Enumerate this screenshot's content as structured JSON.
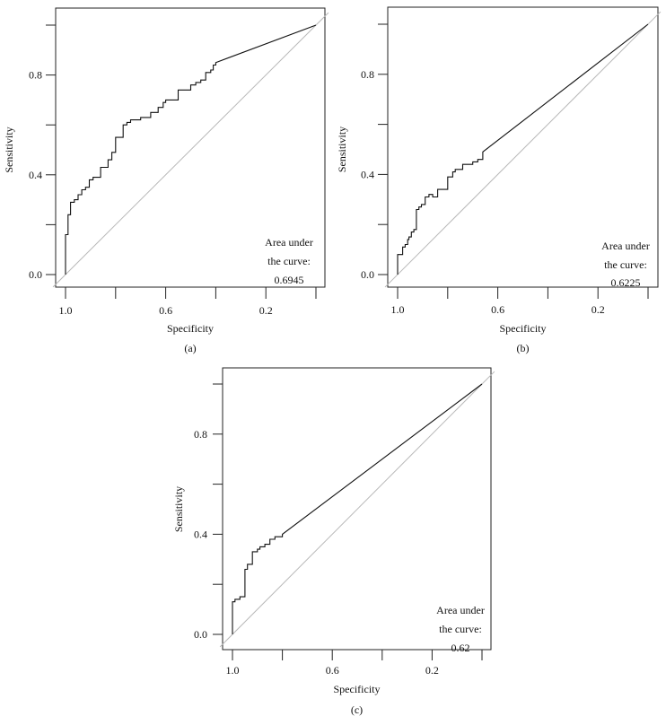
{
  "chart_data": [
    {
      "panel_label": "(a)",
      "type": "line",
      "xlabel": "Specificity",
      "ylabel": "Sensitivity",
      "x_reversed": true,
      "xlim": [
        1.0,
        0.0
      ],
      "ylim": [
        0.0,
        1.0
      ],
      "x_ticks": [
        1.0,
        0.8,
        0.6,
        0.4,
        0.2,
        0.0
      ],
      "x_tick_labels": [
        "1.0",
        "",
        "0.6",
        "",
        "0.2",
        ""
      ],
      "y_ticks": [
        0.0,
        0.2,
        0.4,
        0.6,
        0.8,
        1.0
      ],
      "y_tick_labels": [
        "0.0",
        "",
        "0.4",
        "",
        "0.8",
        ""
      ],
      "annotation": [
        "Area under",
        "the curve:",
        "0.6945"
      ],
      "annotation_position": "bottom-right",
      "reference_line": "diagonal",
      "series": [
        {
          "x": [
            1.0,
            1.0,
            0.99,
            0.99,
            0.98,
            0.98,
            0.965,
            0.965,
            0.95,
            0.95,
            0.935,
            0.935,
            0.92,
            0.92,
            0.905,
            0.905,
            0.89,
            0.89,
            0.86,
            0.86,
            0.83,
            0.83,
            0.815,
            0.815,
            0.8,
            0.8,
            0.77,
            0.77,
            0.755,
            0.755,
            0.74,
            0.74,
            0.7,
            0.7,
            0.66,
            0.66,
            0.63,
            0.63,
            0.61,
            0.61,
            0.6,
            0.6,
            0.55,
            0.55,
            0.5,
            0.5,
            0.48,
            0.48,
            0.46,
            0.46,
            0.44,
            0.44,
            0.42,
            0.42,
            0.41,
            0.41,
            0.4,
            0.4,
            0.0
          ],
          "y": [
            0.0,
            0.16,
            0.16,
            0.24,
            0.24,
            0.29,
            0.29,
            0.3,
            0.3,
            0.32,
            0.32,
            0.34,
            0.34,
            0.35,
            0.35,
            0.38,
            0.38,
            0.39,
            0.39,
            0.43,
            0.43,
            0.46,
            0.46,
            0.49,
            0.49,
            0.55,
            0.55,
            0.6,
            0.6,
            0.61,
            0.61,
            0.62,
            0.62,
            0.63,
            0.63,
            0.65,
            0.65,
            0.67,
            0.67,
            0.69,
            0.69,
            0.7,
            0.7,
            0.74,
            0.74,
            0.76,
            0.76,
            0.77,
            0.77,
            0.78,
            0.78,
            0.81,
            0.81,
            0.82,
            0.82,
            0.84,
            0.84,
            0.85,
            1.0
          ]
        }
      ]
    },
    {
      "panel_label": "(b)",
      "type": "line",
      "xlabel": "Specificity",
      "ylabel": "Sensitivity",
      "x_reversed": true,
      "xlim": [
        1.0,
        0.0
      ],
      "ylim": [
        0.0,
        1.0
      ],
      "x_ticks": [
        1.0,
        0.8,
        0.6,
        0.4,
        0.2,
        0.0
      ],
      "x_tick_labels": [
        "1.0",
        "",
        "0.6",
        "",
        "0.2",
        ""
      ],
      "y_ticks": [
        0.0,
        0.2,
        0.4,
        0.6,
        0.8,
        1.0
      ],
      "y_tick_labels": [
        "0.0",
        "",
        "0.4",
        "",
        "0.8",
        ""
      ],
      "annotation": [
        "Area under",
        "the curve:",
        "0.6225"
      ],
      "annotation_position": "bottom-right",
      "reference_line": "diagonal",
      "series": [
        {
          "x": [
            1.0,
            1.0,
            0.98,
            0.98,
            0.97,
            0.97,
            0.96,
            0.96,
            0.955,
            0.955,
            0.945,
            0.945,
            0.935,
            0.935,
            0.925,
            0.925,
            0.915,
            0.915,
            0.905,
            0.905,
            0.89,
            0.89,
            0.875,
            0.875,
            0.86,
            0.86,
            0.84,
            0.84,
            0.8,
            0.8,
            0.78,
            0.78,
            0.77,
            0.77,
            0.74,
            0.74,
            0.7,
            0.7,
            0.68,
            0.68,
            0.66,
            0.66,
            0.0
          ],
          "y": [
            0.0,
            0.08,
            0.08,
            0.11,
            0.11,
            0.12,
            0.12,
            0.14,
            0.14,
            0.15,
            0.15,
            0.17,
            0.17,
            0.18,
            0.18,
            0.26,
            0.26,
            0.27,
            0.27,
            0.28,
            0.28,
            0.31,
            0.31,
            0.32,
            0.32,
            0.31,
            0.31,
            0.34,
            0.34,
            0.39,
            0.39,
            0.41,
            0.41,
            0.42,
            0.42,
            0.44,
            0.44,
            0.45,
            0.45,
            0.46,
            0.46,
            0.49,
            1.0
          ]
        }
      ]
    },
    {
      "panel_label": "(c)",
      "type": "line",
      "xlabel": "Specificity",
      "ylabel": "Sensitivity",
      "x_reversed": true,
      "xlim": [
        1.0,
        0.0
      ],
      "ylim": [
        0.0,
        1.0
      ],
      "x_ticks": [
        1.0,
        0.8,
        0.6,
        0.4,
        0.2,
        0.0
      ],
      "x_tick_labels": [
        "1.0",
        "",
        "0.6",
        "",
        "0.2",
        ""
      ],
      "y_ticks": [
        0.0,
        0.2,
        0.4,
        0.6,
        0.8,
        1.0
      ],
      "y_tick_labels": [
        "0.0",
        "",
        "0.4",
        "",
        "0.8",
        ""
      ],
      "annotation": [
        "Area under",
        "the curve:",
        "0.62"
      ],
      "annotation_position": "bottom-right",
      "reference_line": "diagonal",
      "series": [
        {
          "x": [
            1.0,
            1.0,
            0.99,
            0.99,
            0.97,
            0.97,
            0.95,
            0.95,
            0.94,
            0.94,
            0.92,
            0.92,
            0.9,
            0.9,
            0.89,
            0.89,
            0.87,
            0.87,
            0.85,
            0.85,
            0.83,
            0.83,
            0.8,
            0.8,
            0.0
          ],
          "y": [
            0.0,
            0.13,
            0.13,
            0.14,
            0.14,
            0.15,
            0.15,
            0.26,
            0.26,
            0.28,
            0.28,
            0.33,
            0.33,
            0.34,
            0.34,
            0.35,
            0.35,
            0.36,
            0.36,
            0.38,
            0.38,
            0.39,
            0.39,
            0.4,
            1.0
          ]
        }
      ]
    }
  ]
}
